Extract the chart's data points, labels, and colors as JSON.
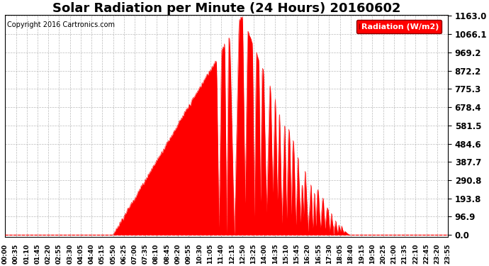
{
  "title": "Solar Radiation per Minute (24 Hours) 20160602",
  "copyright": "Copyright 2016 Cartronics.com",
  "legend_label": "Radiation (W/m2)",
  "ytick_values": [
    0.0,
    96.9,
    193.8,
    290.8,
    387.7,
    484.6,
    581.5,
    678.4,
    775.3,
    872.2,
    969.2,
    1066.1,
    1163.0
  ],
  "ymax": 1163.0,
  "fill_color": "#FF0000",
  "line_color": "#FF0000",
  "background_color": "#FFFFFF",
  "grid_color": "#AAAAAA",
  "title_fontsize": 13,
  "copyright_fontsize": 7,
  "xtick_fontsize": 6.5,
  "ytick_fontsize": 8.5,
  "legend_fontsize": 8,
  "xtick_labels": [
    "00:00",
    "00:35",
    "01:10",
    "01:45",
    "02:20",
    "02:55",
    "03:30",
    "04:05",
    "04:40",
    "05:15",
    "05:50",
    "06:25",
    "07:00",
    "07:35",
    "08:10",
    "08:45",
    "09:20",
    "09:55",
    "10:30",
    "11:05",
    "11:40",
    "12:15",
    "12:50",
    "13:25",
    "14:00",
    "14:35",
    "15:10",
    "15:45",
    "16:20",
    "16:55",
    "17:30",
    "18:05",
    "18:40",
    "19:15",
    "19:50",
    "20:25",
    "21:00",
    "21:35",
    "22:10",
    "22:45",
    "23:20",
    "23:55"
  ],
  "sunrise_min": 350,
  "sunset_min": 1120,
  "peak_min": 770,
  "peak_val": 1163.0
}
